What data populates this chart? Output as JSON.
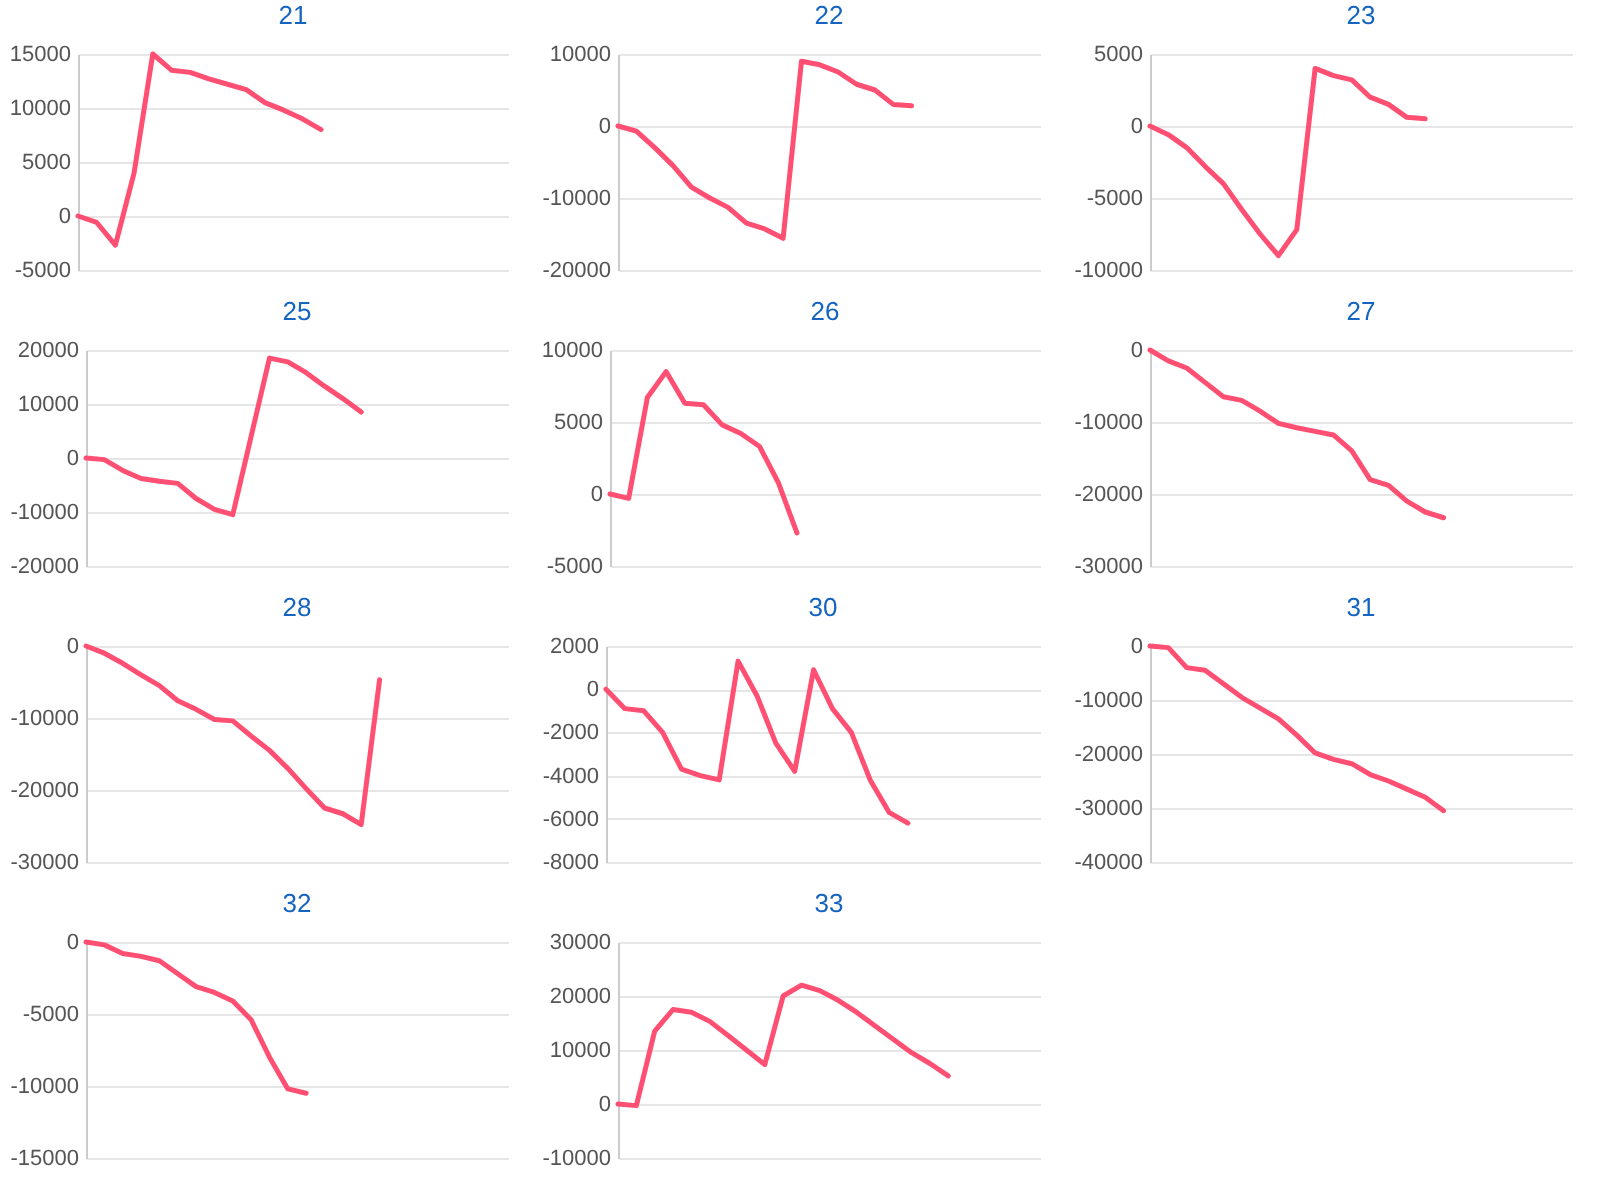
{
  "chart_data": [
    {
      "type": "line",
      "title": "21",
      "categories": [
        null,
        null,
        null,
        null,
        null,
        null,
        null,
        null,
        null,
        null,
        null,
        null,
        null,
        null,
        null,
        null,
        null,
        null,
        null,
        null,
        null,
        null,
        null,
        null
      ],
      "values": [
        0,
        -600,
        -2700,
        4000,
        15000,
        13500,
        13300,
        12700,
        12200,
        11700,
        10500,
        9800,
        9000,
        8000,
        null,
        null,
        null,
        null,
        null,
        null,
        null,
        null,
        null,
        null
      ],
      "color": "#ff4f72",
      "ylim": [
        -5000,
        15000
      ],
      "yticks": [
        -5000,
        0,
        5000,
        10000,
        15000
      ],
      "grid": "y",
      "tick_labels": "y"
    },
    {
      "type": "line",
      "title": "22",
      "categories": [
        null,
        null,
        null,
        null,
        null,
        null,
        null,
        null,
        null,
        null,
        null,
        null,
        null,
        null,
        null,
        null,
        null,
        null,
        null,
        null,
        null,
        null,
        null,
        null
      ],
      "values": [
        0,
        -700,
        -3000,
        -5500,
        -8500,
        -10000,
        -11300,
        -13500,
        -14300,
        -15600,
        9000,
        8500,
        7500,
        5800,
        5000,
        3000,
        2800,
        null,
        null,
        null,
        null,
        null,
        null,
        null
      ],
      "color": "#ff4f72",
      "ylim": [
        -20000,
        10000
      ],
      "yticks": [
        -20000,
        -10000,
        0,
        10000
      ],
      "grid": "y",
      "tick_labels": "y"
    },
    {
      "type": "line",
      "title": "23",
      "categories": [
        null,
        null,
        null,
        null,
        null,
        null,
        null,
        null,
        null,
        null,
        null,
        null,
        null,
        null,
        null,
        null,
        null,
        null,
        null,
        null,
        null,
        null,
        null,
        null
      ],
      "values": [
        0,
        -600,
        -1500,
        -2800,
        -4000,
        -5800,
        -7500,
        -9000,
        -7200,
        4000,
        3500,
        3200,
        2000,
        1500,
        600,
        500,
        null,
        null,
        null,
        null,
        null,
        null,
        null,
        null
      ],
      "color": "#ff4f72",
      "ylim": [
        -10000,
        5000
      ],
      "yticks": [
        -10000,
        -5000,
        0,
        5000
      ],
      "grid": "y",
      "tick_labels": "y"
    },
    {
      "type": "line",
      "title": "25",
      "categories": [
        null,
        null,
        null,
        null,
        null,
        null,
        null,
        null,
        null,
        null,
        null,
        null,
        null,
        null,
        null,
        null,
        null,
        null,
        null,
        null,
        null,
        null,
        null,
        null
      ],
      "values": [
        0,
        -300,
        -2300,
        -3800,
        -4300,
        -4700,
        -7500,
        -9500,
        -10500,
        4000,
        18500,
        17800,
        15800,
        13300,
        11000,
        8500,
        null,
        null,
        null,
        null,
        null,
        null,
        null,
        null
      ],
      "color": "#ff4f72",
      "ylim": [
        -20000,
        20000
      ],
      "yticks": [
        -20000,
        -10000,
        0,
        10000,
        20000
      ],
      "grid": "y",
      "tick_labels": "y"
    },
    {
      "type": "line",
      "title": "26",
      "categories": [
        null,
        null,
        null,
        null,
        null,
        null,
        null,
        null,
        null,
        null,
        null,
        null,
        null,
        null,
        null,
        null,
        null,
        null,
        null,
        null,
        null,
        null,
        null,
        null
      ],
      "values": [
        0,
        -300,
        6700,
        8500,
        6300,
        6200,
        4800,
        4200,
        3300,
        800,
        -2700,
        null,
        null,
        null,
        null,
        null,
        null,
        null,
        null,
        null,
        null,
        null,
        null,
        null
      ],
      "color": "#ff4f72",
      "ylim": [
        -5000,
        10000
      ],
      "yticks": [
        -5000,
        0,
        5000,
        10000
      ],
      "grid": "y",
      "tick_labels": "y"
    },
    {
      "type": "line",
      "title": "27",
      "categories": [
        null,
        null,
        null,
        null,
        null,
        null,
        null,
        null,
        null,
        null,
        null,
        null,
        null,
        null,
        null,
        null,
        null,
        null,
        null,
        null,
        null,
        null,
        null,
        null
      ],
      "values": [
        0,
        -1500,
        -2500,
        -4500,
        -6500,
        -7000,
        -8500,
        -10200,
        -10800,
        -11300,
        -11800,
        -14000,
        -18000,
        -18800,
        -21000,
        -22500,
        -23300,
        null,
        null,
        null,
        null,
        null,
        null,
        null
      ],
      "color": "#ff4f72",
      "ylim": [
        -30000,
        0
      ],
      "yticks": [
        -30000,
        -20000,
        -10000,
        0
      ],
      "grid": "y",
      "tick_labels": "y"
    },
    {
      "type": "line",
      "title": "28",
      "categories": [
        null,
        null,
        null,
        null,
        null,
        null,
        null,
        null,
        null,
        null,
        null,
        null,
        null,
        null,
        null,
        null,
        null,
        null,
        null,
        null,
        null,
        null,
        null,
        null
      ],
      "values": [
        0,
        -1000,
        -2400,
        -4000,
        -5500,
        -7600,
        -8800,
        -10200,
        -10400,
        -12500,
        -14500,
        -17000,
        -19800,
        -22500,
        -23300,
        -24800,
        -4700,
        null,
        null,
        null,
        null,
        null,
        null,
        null
      ],
      "color": "#ff4f72",
      "ylim": [
        -30000,
        0
      ],
      "yticks": [
        -30000,
        -20000,
        -10000,
        0
      ],
      "grid": "y",
      "tick_labels": "y"
    },
    {
      "type": "line",
      "title": "30",
      "categories": [
        null,
        null,
        null,
        null,
        null,
        null,
        null,
        null,
        null,
        null,
        null,
        null,
        null,
        null,
        null,
        null,
        null,
        null,
        null,
        null,
        null,
        null,
        null,
        null
      ],
      "values": [
        0,
        -900,
        -1000,
        -2000,
        -3700,
        -4000,
        -4200,
        1300,
        -300,
        -2500,
        -3800,
        900,
        -900,
        -2000,
        -4200,
        -5700,
        -6200,
        null,
        null,
        null,
        null,
        null,
        null,
        null
      ],
      "color": "#ff4f72",
      "ylim": [
        -8000,
        2000
      ],
      "yticks": [
        -8000,
        -6000,
        -4000,
        -2000,
        0,
        2000
      ],
      "grid": "y",
      "tick_labels": "y"
    },
    {
      "type": "line",
      "title": "31",
      "categories": [
        null,
        null,
        null,
        null,
        null,
        null,
        null,
        null,
        null,
        null,
        null,
        null,
        null,
        null,
        null,
        null,
        null,
        null,
        null,
        null,
        null,
        null,
        null,
        null
      ],
      "values": [
        0,
        -300,
        -4000,
        -4500,
        -7000,
        -9500,
        -11500,
        -13500,
        -16500,
        -19800,
        -21000,
        -21800,
        -23800,
        -25000,
        -26500,
        -28000,
        -30500,
        null,
        null,
        null,
        null,
        null,
        null,
        null
      ],
      "color": "#ff4f72",
      "ylim": [
        -40000,
        0
      ],
      "yticks": [
        -40000,
        -30000,
        -20000,
        -10000,
        0
      ],
      "grid": "y",
      "tick_labels": "y"
    },
    {
      "type": "line",
      "title": "32",
      "categories": [
        null,
        null,
        null,
        null,
        null,
        null,
        null,
        null,
        null,
        null,
        null,
        null,
        null,
        null,
        null,
        null,
        null,
        null,
        null,
        null,
        null,
        null,
        null,
        null
      ],
      "values": [
        0,
        -200,
        -800,
        -1000,
        -1300,
        -2200,
        -3100,
        -3500,
        -4100,
        -5400,
        -8000,
        -10200,
        -10500,
        null,
        null,
        null,
        null,
        null,
        null,
        null,
        null,
        null,
        null,
        null
      ],
      "color": "#ff4f72",
      "ylim": [
        -15000,
        0
      ],
      "yticks": [
        -15000,
        -10000,
        -5000,
        0
      ],
      "grid": "y",
      "tick_labels": "y"
    },
    {
      "type": "line",
      "title": "33",
      "categories": [
        null,
        null,
        null,
        null,
        null,
        null,
        null,
        null,
        null,
        null,
        null,
        null,
        null,
        null,
        null,
        null,
        null,
        null,
        null,
        null,
        null,
        null,
        null,
        null
      ],
      "values": [
        0,
        -300,
        13500,
        17500,
        17000,
        15300,
        12700,
        10000,
        7300,
        20000,
        22000,
        21000,
        19200,
        17000,
        14500,
        12000,
        9500,
        7500,
        5200,
        null,
        null,
        null,
        null,
        null
      ],
      "color": "#ff4f72",
      "ylim": [
        -10000,
        30000
      ],
      "yticks": [
        -10000,
        0,
        10000,
        20000,
        30000
      ],
      "grid": "y",
      "tick_labels": "y"
    }
  ]
}
